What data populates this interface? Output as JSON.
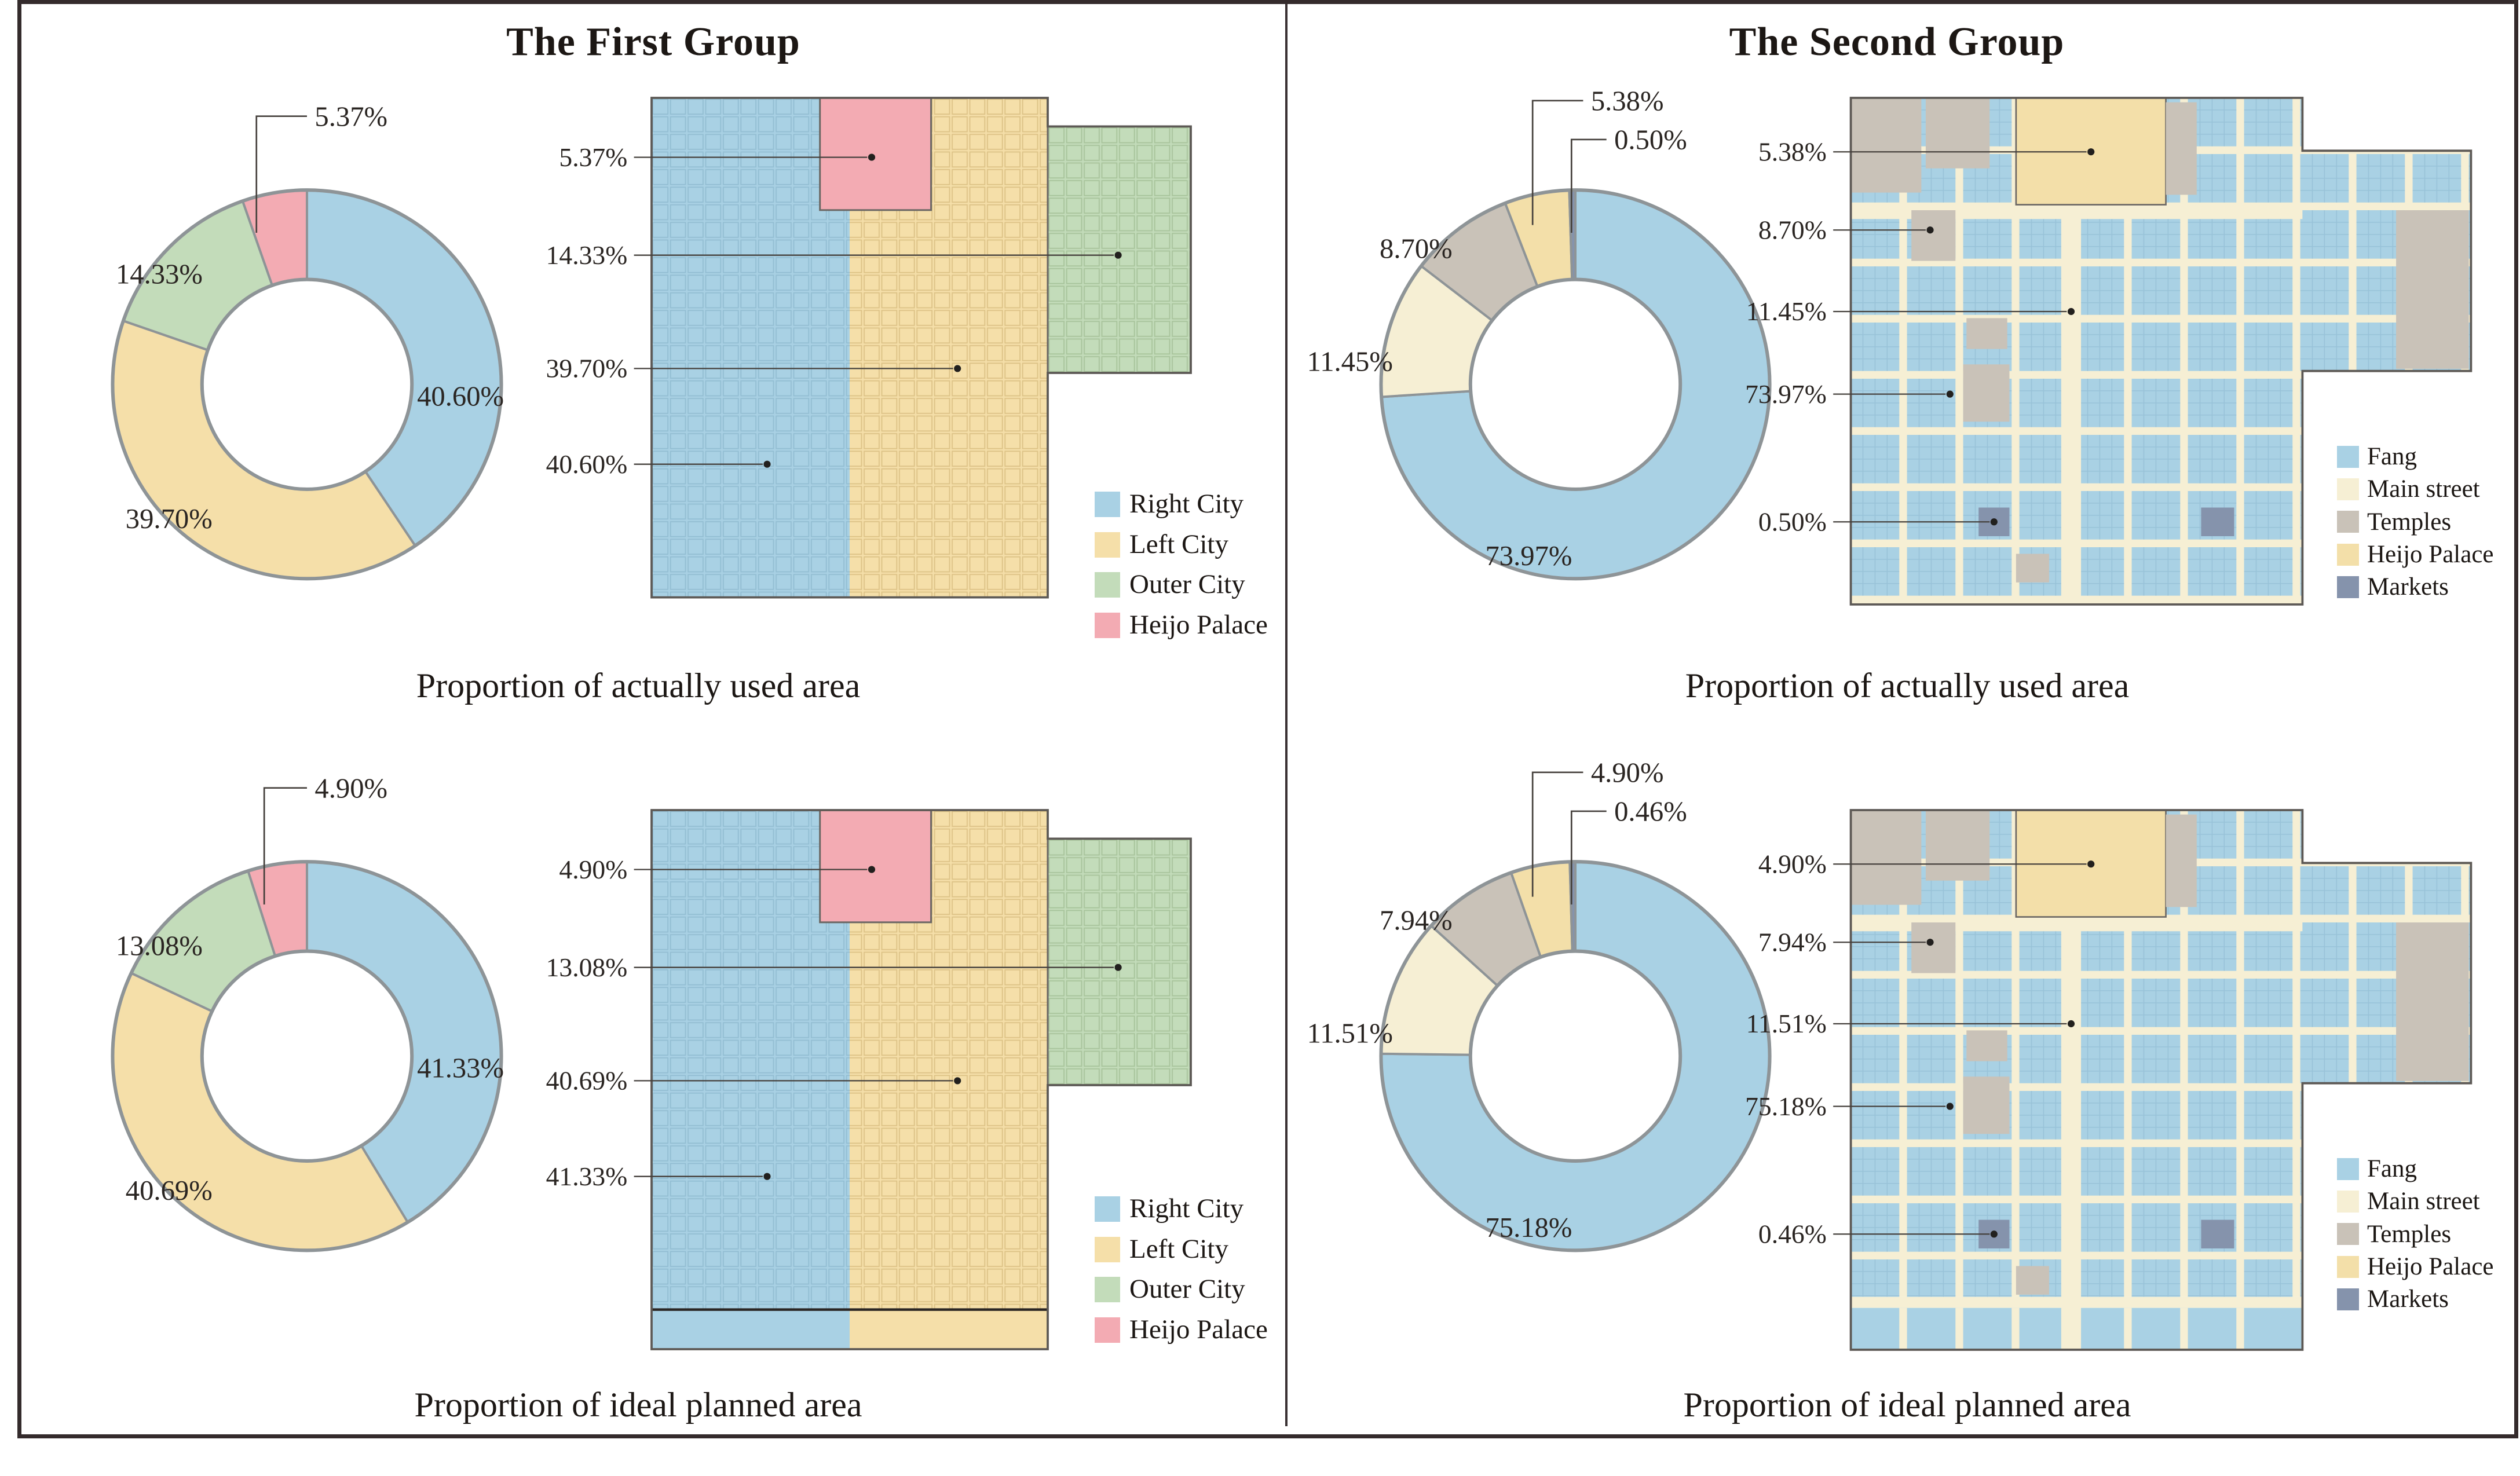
{
  "figure": {
    "type": "composite-figure",
    "description_visible_text_only": true
  },
  "colors": {
    "right_city": "#a9d1e4",
    "left_city": "#f5dfa9",
    "outer_city": "#c3dcba",
    "heijo_palace_pink": "#f3abb3",
    "fang": "#a9d1e4",
    "main_street": "#f6efd4",
    "temples": "#c9c2b8",
    "heijo_palace_tan": "#f3dfa9",
    "markets": "#8593ac",
    "donut_outline": "#8e9497",
    "leader_line": "#45403c",
    "frame": "#342b2c",
    "text": "#1c1714"
  },
  "panels": [
    {
      "title": "The First Group",
      "legend": [
        {
          "label": "Right City",
          "color": "right_city"
        },
        {
          "label": "Left City",
          "color": "left_city"
        },
        {
          "label": "Outer City",
          "color": "outer_city"
        },
        {
          "label": "Heijo Palace",
          "color": "heijo_palace_pink"
        }
      ],
      "sections": [
        {
          "caption": "Proportion of actually used area",
          "chart": "g1-actual",
          "map_labels": [
            "5.37%",
            "14.33%",
            "39.70%",
            "40.60%"
          ]
        },
        {
          "caption": "Proportion of ideal planned area",
          "chart": "g1-ideal",
          "map_labels": [
            "4.90%",
            "13.08%",
            "40.69%",
            "41.33%"
          ]
        }
      ]
    },
    {
      "title": "The Second Group",
      "legend": [
        {
          "label": "Fang",
          "color": "fang"
        },
        {
          "label": "Main street",
          "color": "main_street"
        },
        {
          "label": "Temples",
          "color": "temples"
        },
        {
          "label": "Heijo Palace",
          "color": "heijo_palace_tan"
        },
        {
          "label": "Markets",
          "color": "markets"
        }
      ],
      "sections": [
        {
          "caption": "Proportion of actually used area",
          "chart": "g2-actual",
          "map_labels": [
            "5.38%",
            "8.70%",
            "11.45%",
            "73.97%",
            "0.50%"
          ]
        },
        {
          "caption": "Proportion of ideal planned area",
          "chart": "g2-ideal",
          "map_labels": [
            "4.90%",
            "7.94%",
            "11.51%",
            "75.18%",
            "0.46%"
          ]
        }
      ]
    }
  ],
  "chart_data": [
    {
      "id": "g1-actual",
      "type": "pie",
      "subtype": "donut",
      "group": "The First Group",
      "title": "Proportion of actually used area",
      "start_angle": "12 o'clock",
      "direction": "clockwise",
      "series": [
        {
          "name": "Right City",
          "value": 40.6,
          "label": "40.60%",
          "color": "right_city"
        },
        {
          "name": "Left City",
          "value": 39.7,
          "label": "39.70%",
          "color": "left_city"
        },
        {
          "name": "Outer City",
          "value": 14.33,
          "label": "14.33%",
          "color": "outer_city"
        },
        {
          "name": "Heijo Palace",
          "value": 5.37,
          "label": "5.37%",
          "color": "heijo_palace_pink"
        }
      ]
    },
    {
      "id": "g1-ideal",
      "type": "pie",
      "subtype": "donut",
      "group": "The First Group",
      "title": "Proportion of ideal planned area",
      "start_angle": "12 o'clock",
      "direction": "clockwise",
      "series": [
        {
          "name": "Right City",
          "value": 41.33,
          "label": "41.33%",
          "color": "right_city"
        },
        {
          "name": "Left City",
          "value": 40.69,
          "label": "40.69%",
          "color": "left_city"
        },
        {
          "name": "Outer City",
          "value": 13.08,
          "label": "13.08%",
          "color": "outer_city"
        },
        {
          "name": "Heijo Palace",
          "value": 4.9,
          "label": "4.90%",
          "color": "heijo_palace_pink"
        }
      ]
    },
    {
      "id": "g2-actual",
      "type": "pie",
      "subtype": "donut",
      "group": "The Second Group",
      "title": "Proportion of actually used area",
      "start_angle": "12 o'clock",
      "direction": "clockwise",
      "series": [
        {
          "name": "Fang",
          "value": 73.97,
          "label": "73.97%",
          "color": "fang"
        },
        {
          "name": "Main street",
          "value": 11.45,
          "label": "11.45%",
          "color": "main_street"
        },
        {
          "name": "Temples",
          "value": 8.7,
          "label": "8.70%",
          "color": "temples"
        },
        {
          "name": "Heijo Palace",
          "value": 5.38,
          "label": "5.38%",
          "color": "heijo_palace_tan"
        },
        {
          "name": "Markets",
          "value": 0.5,
          "label": "0.50%",
          "color": "markets"
        }
      ]
    },
    {
      "id": "g2-ideal",
      "type": "pie",
      "subtype": "donut",
      "group": "The Second Group",
      "title": "Proportion of ideal planned area",
      "start_angle": "12 o'clock",
      "direction": "clockwise",
      "series": [
        {
          "name": "Fang",
          "value": 75.18,
          "label": "75.18%",
          "color": "fang"
        },
        {
          "name": "Main street",
          "value": 11.51,
          "label": "11.51%",
          "color": "main_street"
        },
        {
          "name": "Temples",
          "value": 7.94,
          "label": "7.94%",
          "color": "temples"
        },
        {
          "name": "Heijo Palace",
          "value": 4.9,
          "label": "4.90%",
          "color": "heijo_palace_tan"
        },
        {
          "name": "Markets",
          "value": 0.46,
          "label": "0.46%",
          "color": "markets"
        }
      ]
    }
  ]
}
